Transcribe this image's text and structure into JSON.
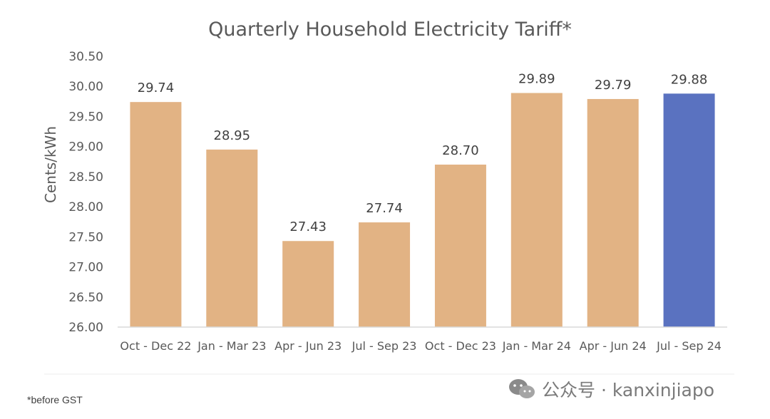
{
  "chart_data": {
    "type": "bar",
    "title": "Quarterly Household Electricity Tariff*",
    "ylabel": "Cents/kWh",
    "xlabel": "",
    "ylim": [
      26.0,
      30.5
    ],
    "yticks": [
      "26.00",
      "26.50",
      "27.00",
      "27.50",
      "28.00",
      "28.50",
      "29.00",
      "29.50",
      "30.00",
      "30.50"
    ],
    "grid": false,
    "legend": "none",
    "categories": [
      "Oct - Dec 22",
      "Jan - Mar 23",
      "Apr - Jun 23",
      "Jul - Sep 23",
      "Oct - Dec 23",
      "Jan - Mar 24",
      "Apr - Jun 24",
      "Jul - Sep 24"
    ],
    "values": [
      29.74,
      28.95,
      27.43,
      27.74,
      28.7,
      29.89,
      29.79,
      29.88
    ],
    "data_labels": [
      "29.74",
      "28.95",
      "27.43",
      "27.74",
      "28.70",
      "29.89",
      "29.79",
      "29.88"
    ],
    "colors": {
      "default_bar": "#e2b384",
      "highlight_bar": "#5a72c0",
      "axis": "#d9d9d9"
    },
    "highlight_index": 7
  },
  "footnote": "*before GST",
  "watermark": {
    "icon": "wechat-icon",
    "text": "公众号 · kanxinjiapo"
  }
}
